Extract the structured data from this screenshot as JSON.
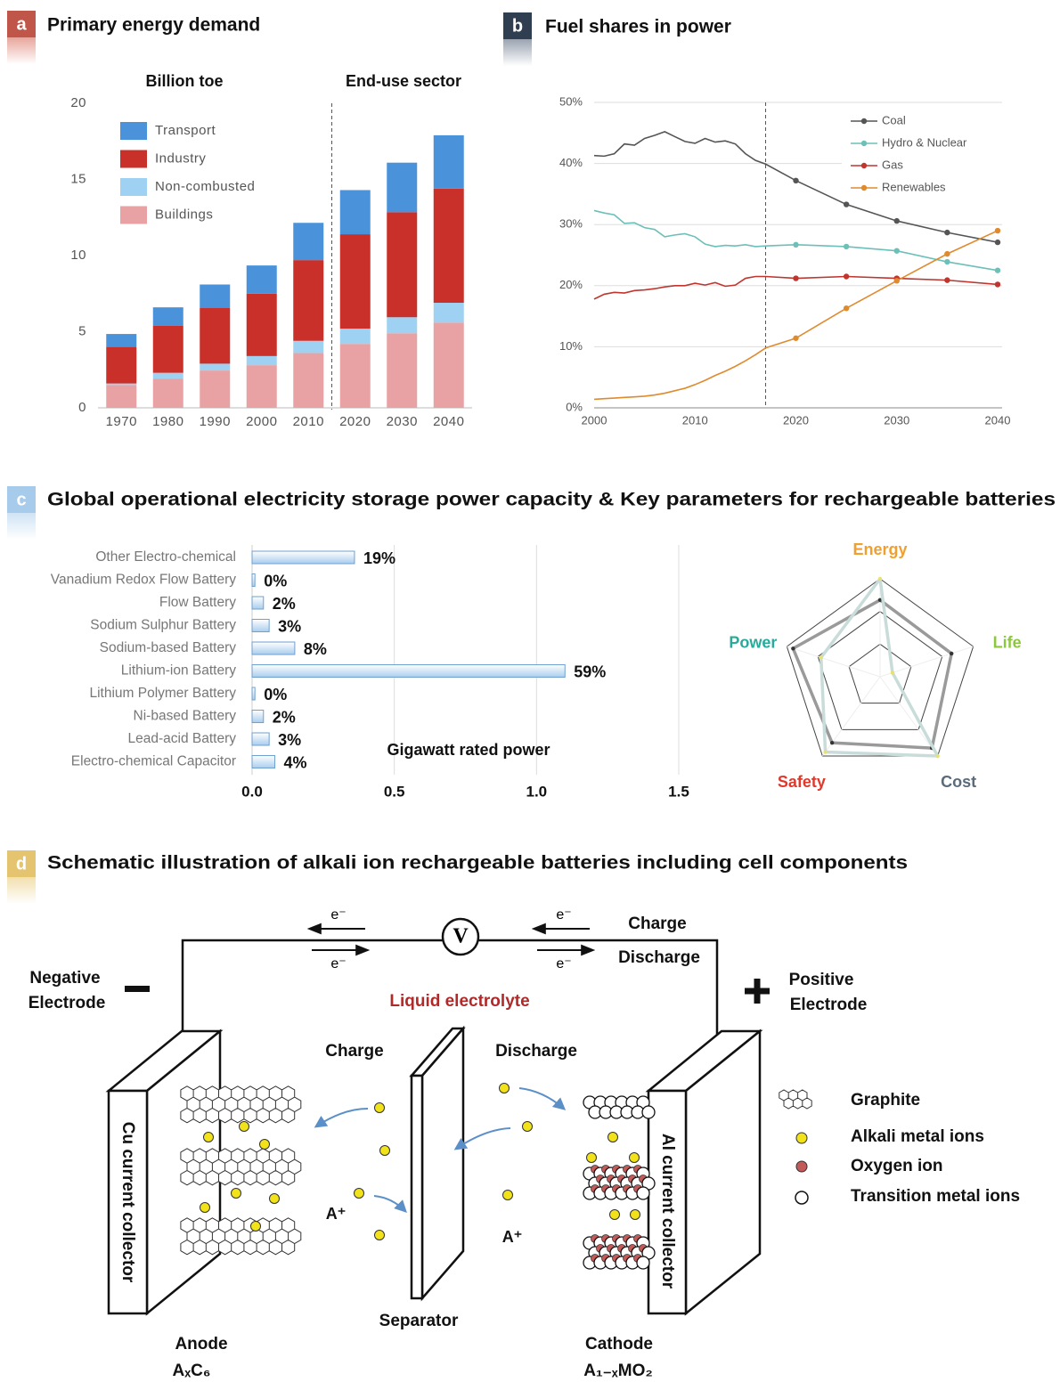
{
  "chart_data": [
    {
      "type": "stacked-bar",
      "panel": "a",
      "title": "Primary energy demand",
      "annotations": [
        "Billion toe",
        "End-use sector"
      ],
      "projection_start": "2020",
      "categories": [
        "1970",
        "1980",
        "1990",
        "2000",
        "2010",
        "2020",
        "2030",
        "2040"
      ],
      "series": [
        {
          "name": "Buildings",
          "color": "#e8a2a4",
          "values": [
            1.5,
            1.9,
            2.45,
            2.8,
            3.6,
            4.2,
            4.9,
            5.6
          ]
        },
        {
          "name": "Non-combusted",
          "color": "#9fd2f2",
          "values": [
            0.1,
            0.4,
            0.45,
            0.6,
            0.8,
            1.0,
            1.05,
            1.3
          ]
        },
        {
          "name": "Industry",
          "color": "#c9302a",
          "values": [
            2.4,
            3.1,
            3.65,
            4.1,
            5.3,
            6.2,
            6.9,
            7.5
          ]
        },
        {
          "name": "Transport",
          "color": "#4a93db",
          "values": [
            0.85,
            1.2,
            1.55,
            1.85,
            2.45,
            2.9,
            3.25,
            3.5
          ]
        }
      ],
      "ylim": [
        0,
        20
      ],
      "yticks": [
        0,
        5,
        10,
        15,
        20
      ],
      "grid": false,
      "legend": "upper left"
    },
    {
      "type": "line",
      "panel": "b",
      "title": "Fuel shares in power",
      "projection_start": 2017,
      "x": [
        2000,
        2001,
        2002,
        2003,
        2004,
        2005,
        2006,
        2007,
        2008,
        2009,
        2010,
        2011,
        2012,
        2013,
        2014,
        2015,
        2016,
        2017,
        2020,
        2025,
        2030,
        2035,
        2040
      ],
      "series": [
        {
          "name": "Coal",
          "color": "#555555",
          "values": [
            41.3,
            41.2,
            41.6,
            43.2,
            43.0,
            44.1,
            44.6,
            45.2,
            44.4,
            43.6,
            43.3,
            44.1,
            43.5,
            43.7,
            43.2,
            41.6,
            40.5,
            39.9,
            37.2,
            33.3,
            30.6,
            28.7,
            27.1
          ]
        },
        {
          "name": "Hydro & Nuclear",
          "color": "#6cc0b8",
          "values": [
            32.3,
            31.9,
            31.6,
            30.2,
            30.3,
            29.5,
            29.2,
            28.0,
            28.3,
            28.5,
            28.0,
            26.8,
            26.4,
            26.6,
            26.5,
            26.7,
            26.4,
            26.5,
            26.7,
            26.4,
            25.7,
            23.9,
            22.5
          ]
        },
        {
          "name": "Gas",
          "color": "#c0352e",
          "values": [
            17.8,
            18.6,
            18.9,
            18.8,
            19.2,
            19.3,
            19.5,
            19.8,
            20.0,
            20.0,
            20.4,
            20.1,
            20.5,
            19.9,
            20.1,
            21.2,
            21.5,
            21.5,
            21.2,
            21.5,
            21.2,
            20.9,
            20.2
          ]
        },
        {
          "name": "Renewables",
          "color": "#e08a2e",
          "values": [
            1.4,
            1.5,
            1.6,
            1.7,
            1.8,
            1.9,
            2.1,
            2.4,
            2.8,
            3.2,
            3.8,
            4.5,
            5.3,
            6.0,
            6.8,
            7.7,
            8.7,
            9.8,
            11.4,
            16.3,
            20.8,
            25.2,
            29.0
          ]
        }
      ],
      "xlim": [
        2000,
        2040
      ],
      "xticks": [
        2000,
        2010,
        2020,
        2030,
        2040
      ],
      "ylim": [
        0,
        50
      ],
      "yticks": [
        {
          "value": 0,
          "label": "0%"
        },
        {
          "value": 10,
          "label": "10%"
        },
        {
          "value": 20,
          "label": "20%"
        },
        {
          "value": 30,
          "label": "30%"
        },
        {
          "value": 40,
          "label": "40%"
        },
        {
          "value": 50,
          "label": "50%"
        }
      ],
      "grid": true,
      "legend": "upper right"
    },
    {
      "type": "hbar",
      "panel": "c",
      "title": "Global operational electricity storage power capacity & Key parameters for rechargeable batteries",
      "xlabel": "Gigawatt rated power",
      "categories": [
        "Other Electro-chemical",
        "Vanadium Redox Flow Battery",
        "Flow Battery",
        "Sodium Sulphur Battery",
        "Sodium-based Battery",
        "Lithium-ion Battery",
        "Lithium Polymer Battery",
        "Ni-based Battery",
        "Lead-acid Battery",
        "Electro-chemical Capacitor"
      ],
      "values": [
        0.36,
        0.01,
        0.04,
        0.06,
        0.15,
        1.1,
        0.01,
        0.04,
        0.06,
        0.08
      ],
      "share_labels": [
        "19%",
        "0%",
        "2%",
        "3%",
        "8%",
        "59%",
        "0%",
        "2%",
        "3%",
        "4%"
      ],
      "color": "#a9cdee",
      "xlim": [
        0,
        1.5
      ],
      "xticks": [
        {
          "value": 0,
          "label": "0.0"
        },
        0.5,
        {
          "value": 1,
          "label": "1.0"
        },
        1.5
      ],
      "grid": true
    },
    {
      "type": "radar",
      "axes": [
        "Energy",
        "Life",
        "Cost",
        "Safety",
        "Power"
      ],
      "axis_colors": [
        "#f0a030",
        "#8dc63f",
        "#5a6b7b",
        "#e0392b",
        "#2aaa9a"
      ],
      "rlim": [
        0,
        3
      ],
      "rticks": [
        1,
        2,
        3
      ],
      "series": [
        {
          "color": "#9a9a9a",
          "values": [
            2.35,
            2.3,
            2.7,
            2.5,
            2.8
          ]
        },
        {
          "color": "#c8dcd9",
          "values": [
            3.0,
            0.4,
            3.0,
            2.85,
            1.9
          ]
        }
      ]
    }
  ],
  "diagram": {
    "panel": "d",
    "title": "Schematic illustration of alkali ion rechargeable batteries including cell components",
    "electron_labels": [
      "e⁻",
      "e⁻",
      "e⁻",
      "e⁻"
    ],
    "meter": "V",
    "circuit_charge": "Charge",
    "circuit_discharge": "Discharge",
    "negative": [
      "Negative",
      "Electrode"
    ],
    "positive": [
      "Positive",
      "Electrode"
    ],
    "electrolyte": "Liquid electrolyte",
    "ion_charge": "Charge",
    "ion_discharge": "Discharge",
    "anode_collector": "Cu current collector",
    "cathode_collector": "Al current collector",
    "ion_labels": [
      "A⁺",
      "A⁺"
    ],
    "separator": "Separator",
    "anode": [
      "Anode",
      "AₓC₆"
    ],
    "cathode": [
      "Cathode",
      "A₁₋ₓMO₂"
    ],
    "legend": [
      "Graphite",
      "Alkali metal ions",
      "Oxygen ion",
      "Transition metal ions"
    ]
  }
}
